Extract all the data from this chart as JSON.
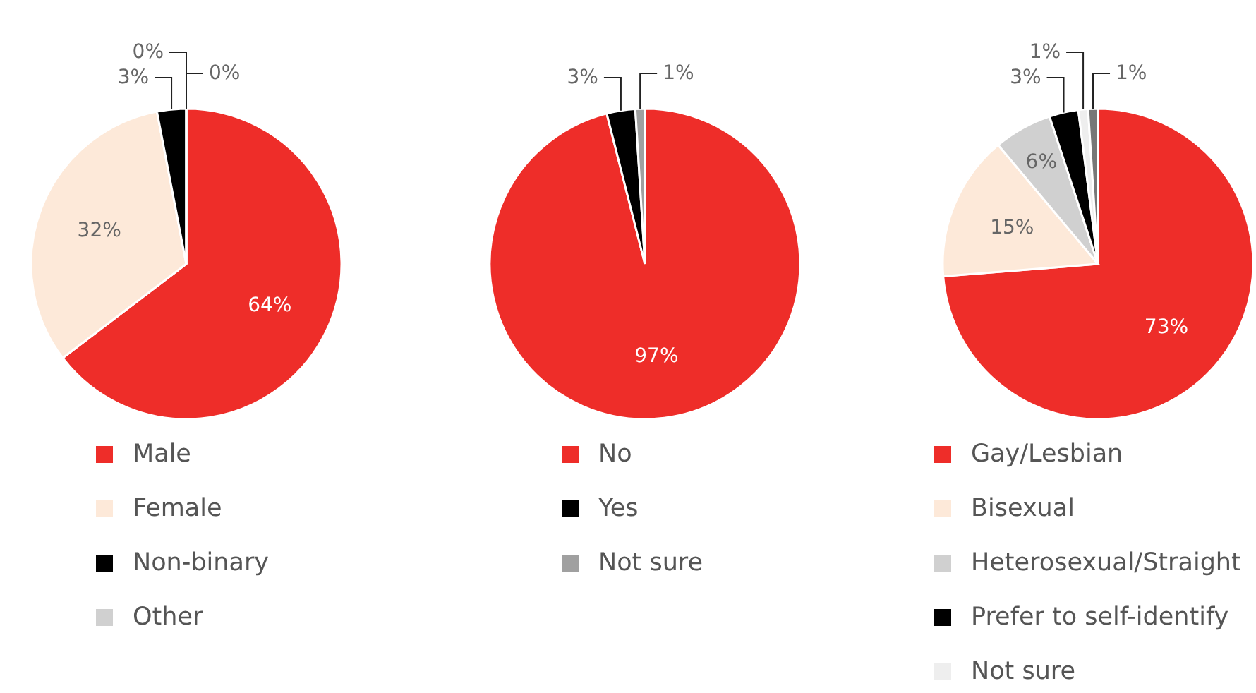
{
  "chart_data": [
    {
      "type": "pie",
      "categories": [
        "Male",
        "Female",
        "Non-binary",
        "Other",
        null
      ],
      "values": [
        64,
        32,
        3,
        0,
        0
      ],
      "value_labels": [
        "64%",
        "32%",
        "3%",
        "0%",
        "0%"
      ],
      "colors": [
        "#ee2d29",
        "#fde9d9",
        "#000000",
        "#d0d0d0",
        "#eeeeee"
      ],
      "legend": "bottom"
    },
    {
      "type": "pie",
      "categories": [
        "No",
        "Yes",
        "Not sure"
      ],
      "values": [
        97,
        3,
        1
      ],
      "value_labels": [
        "97%",
        "3%",
        "1%"
      ],
      "colors": [
        "#ee2d29",
        "#000000",
        "#a0a0a0"
      ],
      "legend": "bottom"
    },
    {
      "type": "pie",
      "categories": [
        "Gay/Lesbian",
        "Bisexual",
        "Heterosexual/Straight",
        "Prefer to self-identify",
        "Not sure",
        null
      ],
      "values": [
        73,
        15,
        6,
        3,
        1,
        1
      ],
      "value_labels": [
        "73%",
        "15%",
        "6%",
        "3%",
        "1%",
        "1%"
      ],
      "colors": [
        "#ee2d29",
        "#fde9d9",
        "#d0d0d0",
        "#000000",
        "#eeeeee",
        "#777777"
      ],
      "legend": "bottom"
    }
  ]
}
